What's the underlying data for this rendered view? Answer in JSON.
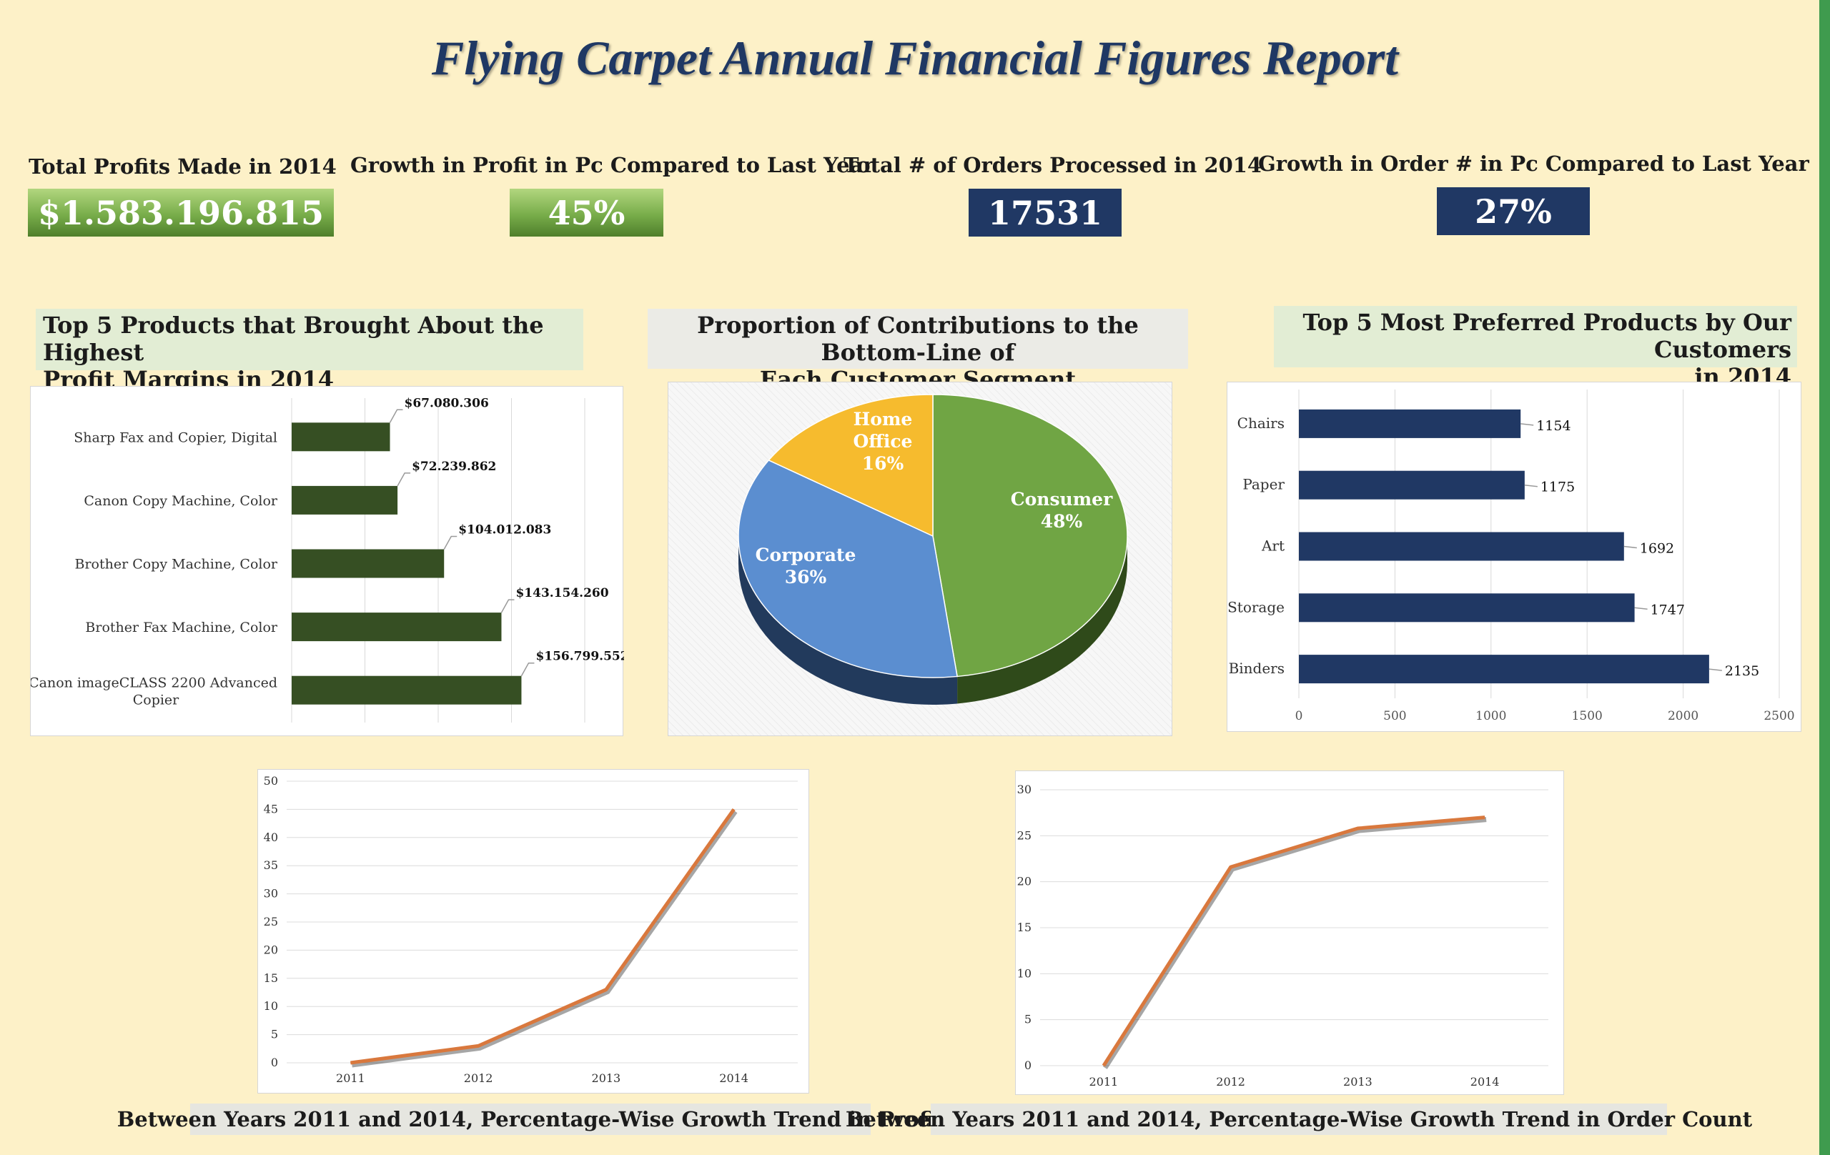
{
  "title": "Flying Carpet Annual Financial Figures Report",
  "kpis": [
    {
      "label": "Total Profits Made in 2014",
      "value": "$1.583.196.815"
    },
    {
      "label": "Growth in Profit in Pc Compared to Last Year",
      "value": "45%"
    },
    {
      "label": "Total # of Orders Processed in 2014",
      "value": "17531"
    },
    {
      "label": "Growth in Order # in Pc Compared to Last Year",
      "value": "27%"
    }
  ],
  "panels": {
    "top_products_title_1": "Top 5 Products that Brought About the Highest",
    "top_products_title_2": "Profit Margins in 2014",
    "segments_title_1": "Proportion of Contributions to the Bottom-Line of",
    "segments_title_2": "Each Customer Segment",
    "preferred_title_1": "Top 5 Most Preferred Products by Our Customers",
    "preferred_title_2": "in 2014",
    "profit_trend_title": "Between Years 2011 and 2014, Percentage-Wise Growth Trend in Profit",
    "order_trend_title": "Between Years 2011 and 2014, Percentage-Wise Growth Trend in Order Count"
  },
  "colors": {
    "dark_green_bar": "#364f23",
    "navy": "#203864",
    "consumer": "#70a544",
    "corporate": "#5b8ed0",
    "home_office": "#f6bb2e",
    "line": "#d9783d",
    "background": "#fdf1c8"
  },
  "chart_data": [
    {
      "type": "bar",
      "orientation": "horizontal",
      "categories": [
        "Sharp Fax and Copier, Digital",
        "Canon Copy Machine, Color",
        "Brother Copy Machine, Color",
        "Brother Fax Machine, Color",
        "Canon imageCLASS 2200 Advanced Copier"
      ],
      "values": [
        67080306,
        72239862,
        104012083,
        143154260,
        156799552
      ],
      "data_labels": [
        "$67.080.306",
        "$72.239.862",
        "$104.012.083",
        "$143.154.260",
        "$156.799.552"
      ],
      "xlim": [
        0,
        200000000
      ],
      "grid": true
    },
    {
      "type": "pie",
      "style": "3d",
      "labels": [
        "Consumer",
        "Corporate",
        "Home Office"
      ],
      "values": [
        48,
        36,
        16
      ],
      "display": [
        "48%",
        "36%",
        "16%"
      ]
    },
    {
      "type": "bar",
      "orientation": "horizontal",
      "categories": [
        "Chairs",
        "Paper",
        "Art",
        "Storage",
        "Binders"
      ],
      "values": [
        1154,
        1175,
        1692,
        1747,
        2135
      ],
      "xlim": [
        0,
        2500
      ],
      "xticks": [
        "0",
        "500",
        "1000",
        "1500",
        "2000",
        "2500"
      ],
      "grid": true
    },
    {
      "type": "line",
      "x": [
        "2011",
        "2012",
        "2013",
        "2014"
      ],
      "values": [
        0,
        3,
        13,
        45
      ],
      "ylim": [
        0,
        50
      ],
      "yticks": [
        "0",
        "5",
        "10",
        "15",
        "20",
        "25",
        "30",
        "35",
        "40",
        "45",
        "50"
      ],
      "grid": true
    },
    {
      "type": "line",
      "x": [
        "2011",
        "2012",
        "2013",
        "2014"
      ],
      "values": [
        0,
        21.6,
        25.8,
        27
      ],
      "ylim": [
        0,
        30
      ],
      "yticks": [
        "0",
        "5",
        "10",
        "15",
        "20",
        "25",
        "30"
      ],
      "grid": true
    }
  ]
}
